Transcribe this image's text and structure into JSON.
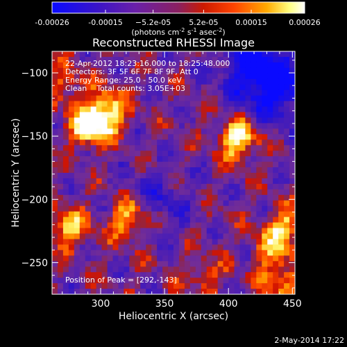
{
  "colorbar": {
    "ticks": [
      {
        "value": -0.00026,
        "label": "-0.00026"
      },
      {
        "value": -0.00015,
        "label": "-0.00015"
      },
      {
        "value": -5.2e-05,
        "label": "−5.2e-05"
      },
      {
        "value": 5.2e-05,
        "label": "5.2e-05"
      },
      {
        "value": 0.00015,
        "label": "0.00015"
      },
      {
        "value": 0.00026,
        "label": "0.00026"
      }
    ],
    "range": [
      -0.00026,
      0.00026
    ],
    "unit_prefix": "(photons cm",
    "unit_exp1": "-2",
    "unit_mid": " s",
    "unit_exp2": "-1",
    "unit_mid2": " asec",
    "unit_exp3": "-2",
    "unit_suffix": ")"
  },
  "chart_data": {
    "type": "heatmap",
    "title": "Reconstructed RHESSI Image",
    "xlabel": "Heliocentric X (arcsec)",
    "ylabel": "Heliocentric Y (arcsec)",
    "xlim": [
      262,
      452
    ],
    "ylim": [
      -275,
      -83
    ],
    "x_ticks": [
      300,
      350,
      400,
      450
    ],
    "y_ticks": [
      -100,
      -150,
      -200,
      -250
    ],
    "colormap_stops": [
      "#1a1aff",
      "#4b1a9e",
      "#7b2fbe",
      "#cc1a00",
      "#ff5500",
      "#ffbb00",
      "#ffff99",
      "#ffffff"
    ],
    "bright_regions": [
      {
        "x": 292,
        "y": -143,
        "value": 0.00026
      },
      {
        "x": 305,
        "y": -130,
        "value": 0.00022
      },
      {
        "x": 408,
        "y": -153,
        "value": 0.00024
      },
      {
        "x": 322,
        "y": -215,
        "value": 0.0002
      },
      {
        "x": 275,
        "y": -222,
        "value": 0.00019
      },
      {
        "x": 445,
        "y": -223,
        "value": 0.00018
      },
      {
        "x": 442,
        "y": -265,
        "value": 0.00016
      },
      {
        "x": 432,
        "y": -240,
        "value": 0.00012
      },
      {
        "x": 272,
        "y": -110,
        "value": 0.00012
      },
      {
        "x": 380,
        "y": -260,
        "value": 0.0001
      }
    ],
    "dim_regions": [
      {
        "x": 420,
        "y": -95,
        "value": -0.00022
      },
      {
        "x": 440,
        "y": -115,
        "value": -0.00018
      },
      {
        "x": 345,
        "y": -200,
        "value": -0.0001
      }
    ],
    "info_lines": [
      "22-Apr-2012 18:23:16.000 to 18:25:48.000",
      "Detectors: 3F 5F 6F 7F 8F 9F, Att 0",
      "Energy Range: 25.0 - 50.0 keV",
      "Clean    Total counts: 3.05E+03"
    ],
    "peak_label": "Position of Peak = [292,-143]"
  },
  "timestamp": "2-May-2014 17:22"
}
